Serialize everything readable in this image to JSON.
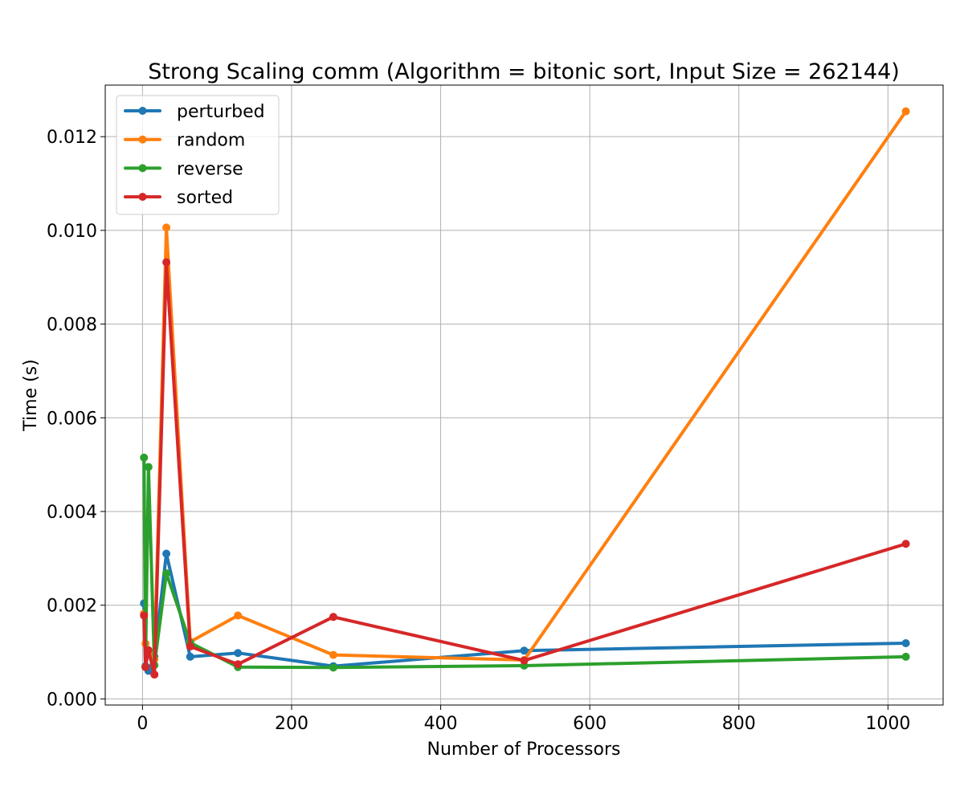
{
  "chart_data": {
    "type": "line",
    "title": "Strong Scaling comm (Algorithm = bitonic sort, Input Size = 262144)",
    "xlabel": "Number of Processors",
    "ylabel": "Time (s)",
    "xlim": [
      -50,
      1074
    ],
    "ylim": [
      -0.00013,
      0.0131
    ],
    "xticks": [
      0,
      200,
      400,
      600,
      800,
      1000
    ],
    "xtick_labels": [
      "0",
      "200",
      "400",
      "600",
      "800",
      "1000"
    ],
    "yticks": [
      0.0,
      0.002,
      0.004,
      0.006,
      0.008,
      0.01,
      0.012
    ],
    "ytick_labels": [
      "0.000",
      "0.002",
      "0.004",
      "0.006",
      "0.008",
      "0.010",
      "0.012"
    ],
    "grid": true,
    "legend_position": "top-left",
    "x": [
      2,
      4,
      8,
      16,
      32,
      64,
      128,
      256,
      512,
      1024
    ],
    "series": [
      {
        "name": "perturbed",
        "color": "#1f77b4",
        "values": [
          0.00204,
          0.0007,
          0.0006,
          0.0009,
          0.0031,
          0.0009,
          0.00098,
          0.0007,
          0.00103,
          0.00119
        ]
      },
      {
        "name": "random",
        "color": "#ff7f0e",
        "values": [
          0.00182,
          0.00118,
          0.00098,
          0.00085,
          0.01006,
          0.00122,
          0.00178,
          0.00094,
          0.00083,
          0.01254
        ]
      },
      {
        "name": "reverse",
        "color": "#2ca02c",
        "values": [
          0.00515,
          0.00068,
          0.00495,
          0.00072,
          0.00268,
          0.0012,
          0.00068,
          0.00067,
          0.00071,
          0.0009
        ]
      },
      {
        "name": "sorted",
        "color": "#d62728",
        "values": [
          0.00178,
          0.00068,
          0.00104,
          0.00052,
          0.00932,
          0.00112,
          0.00074,
          0.00175,
          0.00082,
          0.00331
        ]
      }
    ]
  }
}
